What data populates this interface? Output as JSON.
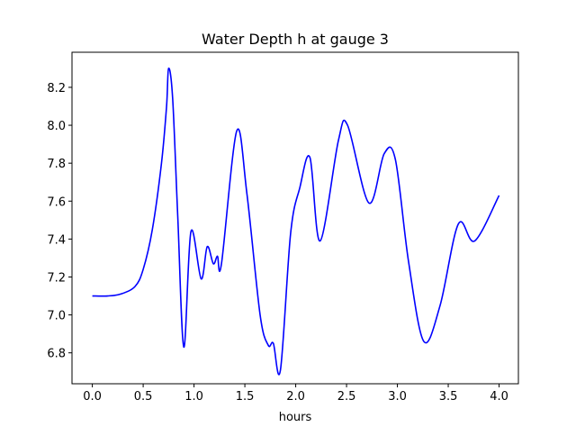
{
  "chart_data": {
    "type": "line",
    "title": "Water Depth h at gauge 3",
    "xlabel": "hours",
    "ylabel": "",
    "xlim": [
      -0.2,
      4.19
    ],
    "ylim": [
      6.637,
      8.385
    ],
    "xticks": [
      0.0,
      0.5,
      1.0,
      1.5,
      2.0,
      2.5,
      3.0,
      3.5,
      4.0
    ],
    "xtick_labels": [
      "0.0",
      "0.5",
      "1.0",
      "1.5",
      "2.0",
      "2.5",
      "3.0",
      "3.5",
      "4.0"
    ],
    "yticks": [
      6.8,
      7.0,
      7.2,
      7.4,
      7.6,
      7.8,
      8.0,
      8.2
    ],
    "ytick_labels": [
      "6.8",
      "7.0",
      "7.2",
      "7.4",
      "7.6",
      "7.8",
      "8.0",
      "8.2"
    ],
    "grid": false,
    "series": [
      {
        "name": "h",
        "color": "#0000ff",
        "x": [
          0.0,
          0.15,
          0.28,
          0.42,
          0.5,
          0.59,
          0.68,
          0.73,
          0.75,
          0.79,
          0.84,
          0.9,
          0.97,
          1.07,
          1.13,
          1.19,
          1.23,
          1.27,
          1.42,
          1.52,
          1.65,
          1.73,
          1.78,
          1.85,
          1.95,
          2.04,
          2.14,
          2.24,
          2.42,
          2.51,
          2.72,
          2.87,
          2.98,
          3.11,
          3.26,
          3.42,
          3.6,
          3.76,
          4.0
        ],
        "y": [
          7.1,
          7.1,
          7.11,
          7.15,
          7.24,
          7.45,
          7.8,
          8.1,
          8.3,
          8.14,
          7.52,
          6.83,
          7.44,
          7.19,
          7.36,
          7.27,
          7.31,
          7.27,
          7.97,
          7.64,
          7.0,
          6.84,
          6.85,
          6.71,
          7.43,
          7.67,
          7.83,
          7.39,
          7.92,
          8.0,
          7.59,
          7.85,
          7.82,
          7.28,
          6.86,
          7.05,
          7.48,
          7.39,
          7.63
        ]
      }
    ]
  }
}
